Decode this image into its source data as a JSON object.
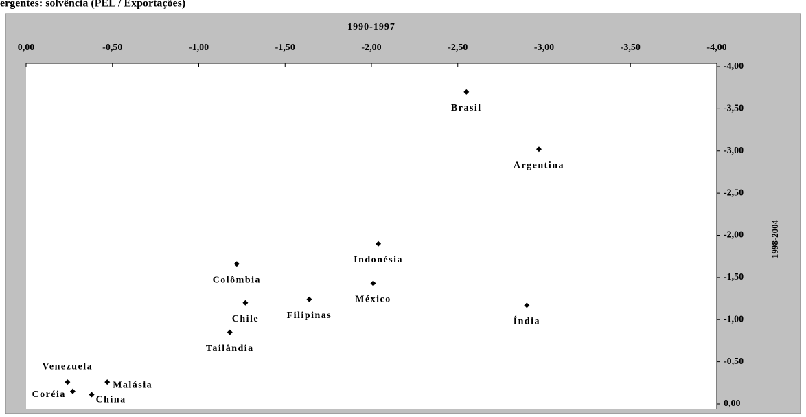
{
  "chart_data": {
    "type": "scatter",
    "title": "ergentes: solvência (PEL / Exportações)",
    "x_label": "1990-1997",
    "y_label": "1998-2004",
    "labels": [
      "Brasil",
      "Argentina",
      "Indonésia",
      "México",
      "Índia",
      "Colômbia",
      "Chile",
      "Filipinas",
      "Tailândia",
      "Venezuela",
      "Malásia",
      "Coréia",
      "China"
    ],
    "x": [
      -2.55,
      -2.97,
      -2.04,
      -2.01,
      -2.9,
      -1.22,
      -1.27,
      -1.64,
      -1.18,
      -0.24,
      -0.47,
      -0.27,
      -0.38
    ],
    "values": [
      -3.7,
      -3.02,
      -1.9,
      -1.43,
      -1.17,
      -1.66,
      -1.2,
      -1.24,
      -0.85,
      -0.26,
      -0.26,
      -0.15,
      -0.11
    ],
    "color": "#000000",
    "xlim": [
      0,
      -4
    ],
    "ylim": [
      0,
      -4
    ],
    "xticks": [
      {
        "value": 0,
        "label": "0,00"
      },
      {
        "value": -0.5,
        "label": "-0,50"
      },
      {
        "value": -1,
        "label": "-1,00"
      },
      {
        "value": -1.5,
        "label": "-1,50"
      },
      {
        "value": -2,
        "label": "-2,00"
      },
      {
        "value": -2.5,
        "label": "-2,50"
      },
      {
        "value": -3,
        "label": "-3,00"
      },
      {
        "value": -3.5,
        "label": "-3,50"
      },
      {
        "value": -4,
        "label": "-4,00"
      }
    ],
    "yticks": [
      {
        "value": 0,
        "label": "0,00"
      },
      {
        "value": -0.5,
        "label": "-0,50"
      },
      {
        "value": -1,
        "label": "-1,00"
      },
      {
        "value": -1.5,
        "label": "-1,50"
      },
      {
        "value": -2,
        "label": "-2,00"
      },
      {
        "value": -2.5,
        "label": "-2,50"
      },
      {
        "value": -3,
        "label": "-3,00"
      },
      {
        "value": -3.5,
        "label": "-3,50"
      },
      {
        "value": -4,
        "label": "-4,00"
      }
    ]
  }
}
